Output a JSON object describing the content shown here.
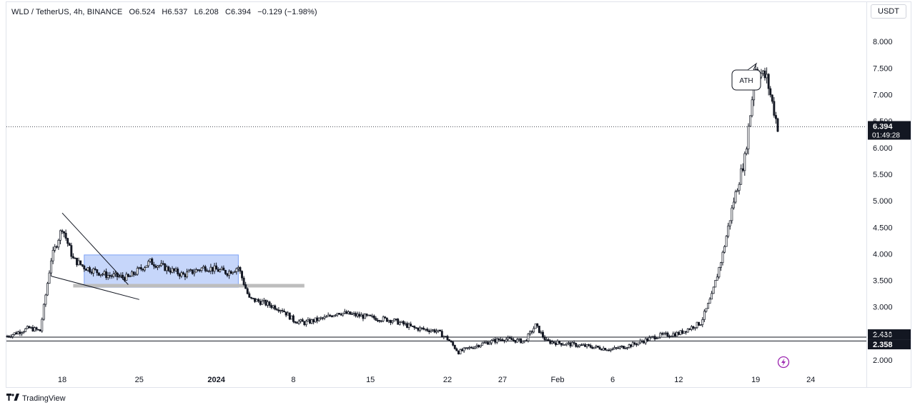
{
  "header": {
    "symbol": "WLD / TetherUS, 4h, BINANCE",
    "open": "O6.524",
    "high": "H6.537",
    "low": "L6.208",
    "close": "C6.394",
    "change": "−0.129 (−1.98%)"
  },
  "currency_button": "USDT",
  "brand": "TradingView",
  "colors": {
    "candle": "#131722",
    "box_fill": "#a8c0f8",
    "box_stroke": "#7ea2f5",
    "gray_level": "#bdbdbd",
    "badge_bg": "#131722",
    "badge_text": "#ffffff",
    "icon_purple": "#9c27b0"
  },
  "chart_data": {
    "type": "candlestick",
    "title": "WLD / TetherUS, 4h, BINANCE",
    "ylim": [
      1.9,
      8.5
    ],
    "y_ticks": [
      "2.000",
      "2.500",
      "3.000",
      "3.500",
      "4.000",
      "4.500",
      "5.000",
      "5.500",
      "6.000",
      "6.500",
      "7.000",
      "7.500",
      "8.000"
    ],
    "x_ticks": [
      "18",
      "25",
      "2024",
      "8",
      "15",
      "22",
      "27",
      "Feb",
      "6",
      "12",
      "19",
      "24"
    ],
    "close_points": [
      [
        "Dec 13",
        2.45
      ],
      [
        "Dec 15",
        2.6
      ],
      [
        "Dec 16",
        2.55
      ],
      [
        "Dec 17",
        3.9
      ],
      [
        "Dec 18",
        4.5
      ],
      [
        "Dec 19",
        3.9
      ],
      [
        "Dec 20",
        3.75
      ],
      [
        "Dec 22",
        3.6
      ],
      [
        "Dec 24",
        3.55
      ],
      [
        "Dec 25",
        3.7
      ],
      [
        "Dec 26",
        3.85
      ],
      [
        "Dec 29",
        3.6
      ],
      [
        "Dec 31",
        3.75
      ],
      [
        "Jan 2",
        3.65
      ],
      [
        "Jan 3",
        3.75
      ],
      [
        "Jan 4",
        3.15
      ],
      [
        "Jan 5",
        3.1
      ],
      [
        "Jan 7",
        2.95
      ],
      [
        "Jan 8",
        2.75
      ],
      [
        "Jan 9",
        2.7
      ],
      [
        "Jan 11",
        2.8
      ],
      [
        "Jan 12",
        2.9
      ],
      [
        "Jan 15",
        2.8
      ],
      [
        "Jan 17",
        2.75
      ],
      [
        "Jan 19",
        2.6
      ],
      [
        "Jan 21",
        2.55
      ],
      [
        "Jan 22",
        2.4
      ],
      [
        "Jan 23",
        2.15
      ],
      [
        "Jan 25",
        2.3
      ],
      [
        "Jan 27",
        2.4
      ],
      [
        "Jan 29",
        2.35
      ],
      [
        "Jan 30",
        2.65
      ],
      [
        "Jan 31",
        2.35
      ],
      [
        "Feb 2",
        2.3
      ],
      [
        "Feb 4",
        2.25
      ],
      [
        "Feb 6",
        2.2
      ],
      [
        "Feb 8",
        2.3
      ],
      [
        "Feb 10",
        2.45
      ],
      [
        "Feb 12",
        2.5
      ],
      [
        "Feb 14",
        2.7
      ],
      [
        "Feb 15",
        3.2
      ],
      [
        "Feb 16",
        4.0
      ],
      [
        "Feb 17",
        5.0
      ],
      [
        "Feb 18",
        5.8
      ],
      [
        "Feb 19",
        7.5
      ],
      [
        "Feb 20",
        7.3
      ],
      [
        "Feb 21",
        6.39
      ]
    ],
    "annotations": {
      "ath_label": "ATH",
      "current_price": "6.394",
      "countdown": "01:49:28",
      "support_upper": "2.430",
      "support_lower": "2.358"
    },
    "drawings": {
      "range_box": {
        "from": "Dec 20",
        "to": "Jan 3",
        "low": 3.37,
        "high": 3.98
      },
      "gray_level": {
        "from": "Dec 19",
        "to": "Jan 9",
        "value": 3.4
      },
      "wedge_upper": {
        "from": [
          "Dec 18",
          4.77
        ],
        "to": [
          "Dec 24",
          3.42
        ]
      },
      "wedge_lower": {
        "from": [
          "Dec 17",
          3.58
        ],
        "to": [
          "Dec 25",
          3.14
        ]
      },
      "hlines": [
        2.43,
        2.358
      ],
      "dotted_last": 6.394
    }
  }
}
